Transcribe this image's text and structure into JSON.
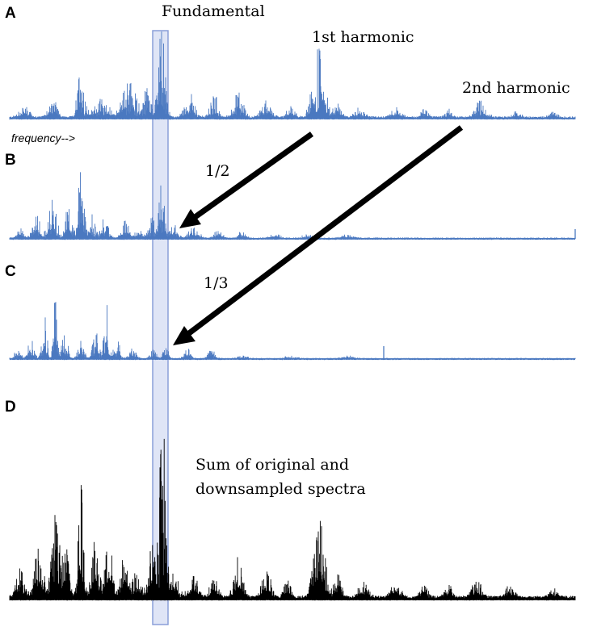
{
  "figure": {
    "panel_labels": [
      "A",
      "B",
      "C",
      "D"
    ],
    "fundamental_label": "Fundamental",
    "first_harmonic_label": "1st harmonic",
    "second_harmonic_label": "2nd harmonic",
    "frequency_label": "frequency-->",
    "half_ratio_label": "1/2",
    "third_ratio_label": "1/3",
    "sum_label_line1": "Sum of original and",
    "sum_label_line2": "downsampled spectra"
  },
  "colors": {
    "spectrum_blue": "#4a78c0",
    "spectrum_black": "#000000",
    "highlight_fill": "#c9d3f0",
    "highlight_stroke": "#8a9fd8",
    "arrow": "#000000"
  },
  "spectra": {
    "A": {
      "peaks_at": [
        "fundamental",
        "1st harmonic",
        "2nd harmonic"
      ]
    },
    "B": {
      "downsample_factor": "1/2"
    },
    "C": {
      "downsample_factor": "1/3"
    },
    "D": {
      "description_text_bound": true
    }
  }
}
